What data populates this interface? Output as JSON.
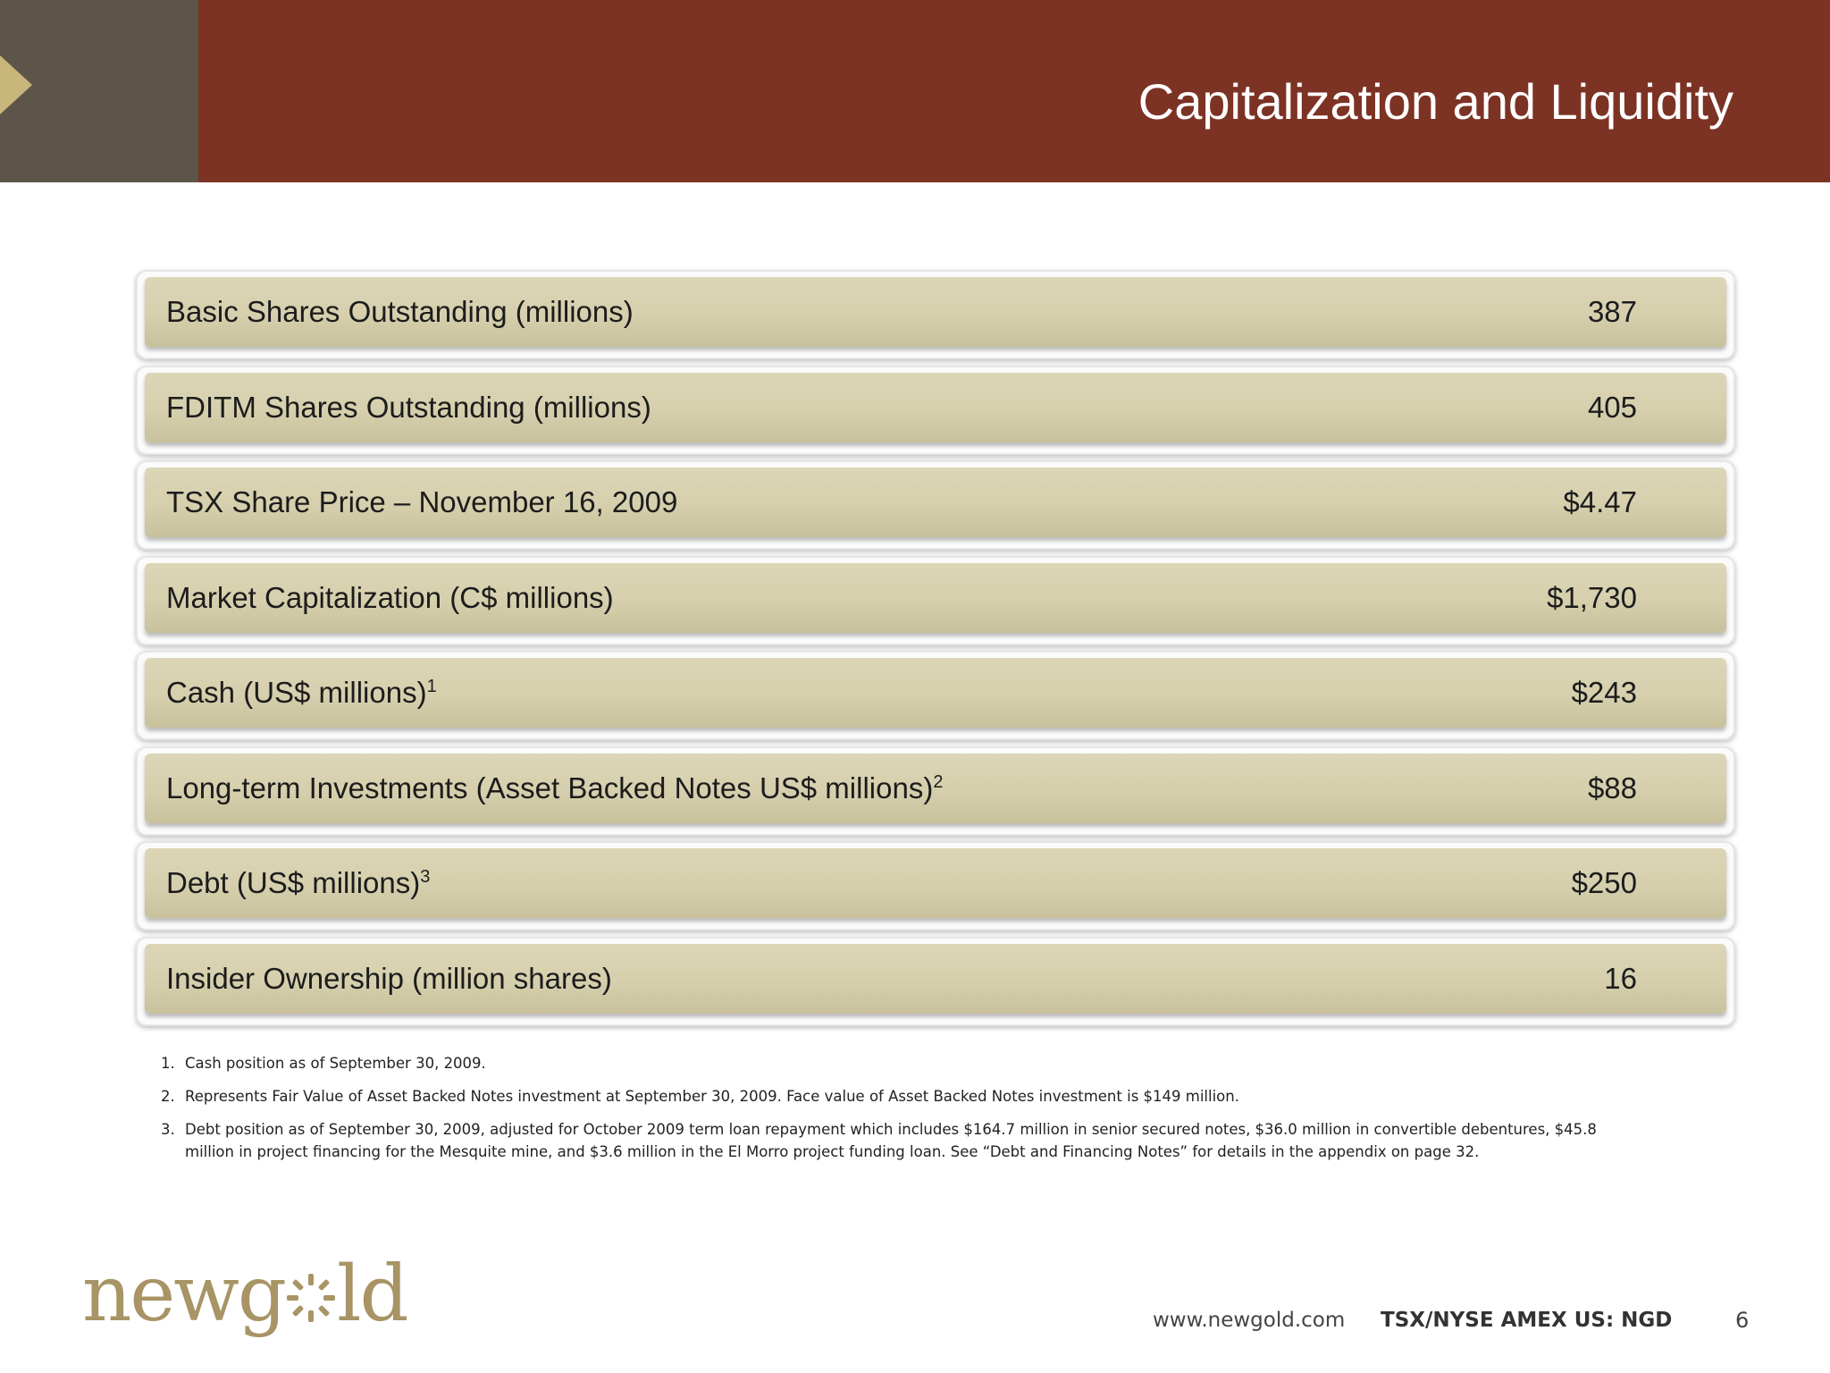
{
  "slide": {
    "title": "Capitalization and Liquidity",
    "page_number": "6"
  },
  "rows": [
    {
      "label": "Basic Shares Outstanding (millions)",
      "sup": "",
      "value": "387"
    },
    {
      "label": "FDITM Shares Outstanding (millions)",
      "sup": "",
      "value": "405"
    },
    {
      "label": "TSX Share Price – November 16, 2009",
      "sup": "",
      "value": "$4.47"
    },
    {
      "label": "Market Capitalization (C$ millions)",
      "sup": "",
      "value": "$1,730"
    },
    {
      "label": "Cash (US$ millions)",
      "sup": "1",
      "value": "$243"
    },
    {
      "label": "Long-term Investments (Asset Backed Notes US$ millions)",
      "sup": "2",
      "value": "$88"
    },
    {
      "label": "Debt (US$ millions)",
      "sup": "3",
      "value": "$250"
    },
    {
      "label": "Insider Ownership (million shares)",
      "sup": "",
      "value": "16"
    }
  ],
  "footnotes": [
    {
      "num": "1.",
      "text": "Cash position as of September 30, 2009."
    },
    {
      "num": "2.",
      "text": "Represents Fair Value of Asset Backed Notes investment at September 30, 2009. Face value of Asset Backed Notes investment is $149 million."
    },
    {
      "num": "3.",
      "text": "Debt position as of September 30, 2009, adjusted for October 2009 term loan repayment which includes $164.7 million in senior secured notes, $36.0 million in convertible debentures, $45.8 million in project financing for the Mesquite mine, and $3.6 million in the El Morro project funding loan. See “Debt and Financing Notes” for details in the appendix on page 32."
    }
  ],
  "footer": {
    "logo_text_left": "newg",
    "logo_text_right": "ld",
    "url": "www.newgold.com",
    "ticker": "TSX/NYSE AMEX US: NGD"
  },
  "colors": {
    "header": "#7c3324",
    "header_block": "#5e554a",
    "row_fill": "#d5cfad",
    "logo": "#a89464"
  }
}
